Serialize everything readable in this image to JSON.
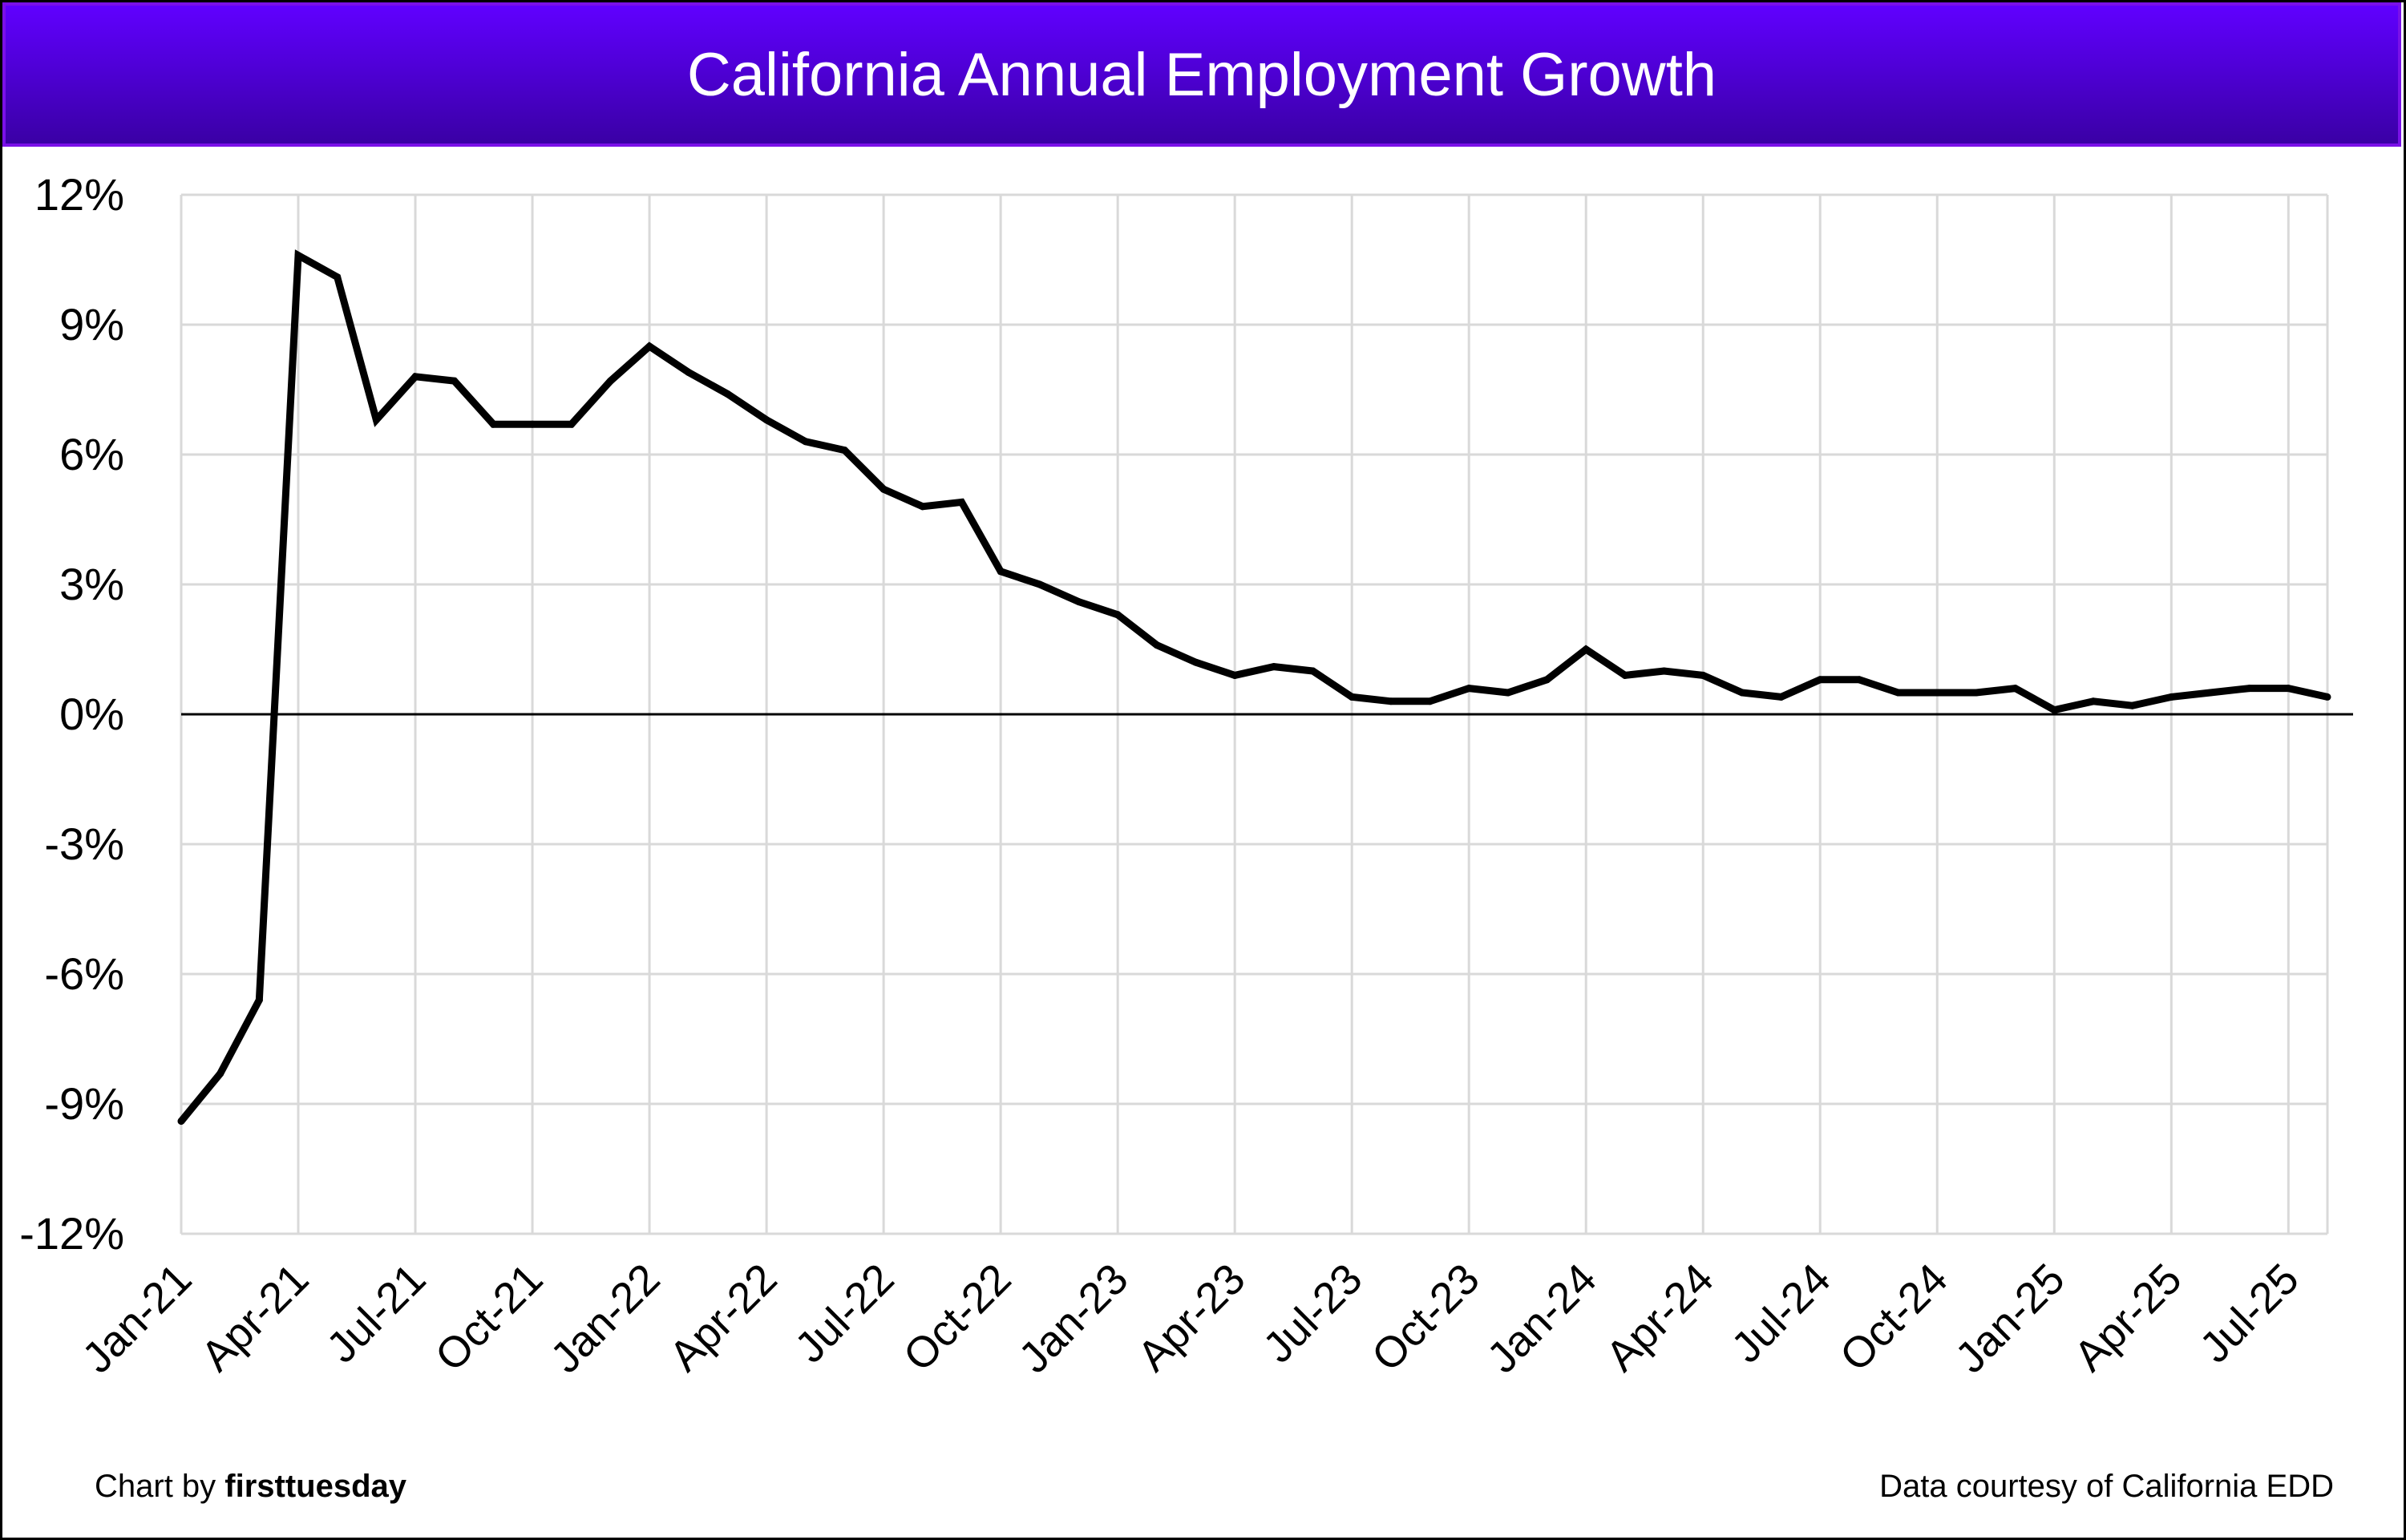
{
  "chart_data": {
    "type": "line",
    "title": "California Annual Employment Growth",
    "xlabel": "",
    "ylabel": "",
    "ylim": [
      -12,
      12
    ],
    "yticks": [
      "-12%",
      "-9%",
      "-6%",
      "-3%",
      "0%",
      "3%",
      "6%",
      "9%",
      "12%"
    ],
    "ytick_values": [
      -12,
      -9,
      -6,
      -3,
      0,
      3,
      6,
      9,
      12
    ],
    "xtick_labels": [
      "Jan-21",
      "Apr-21",
      "Jul-21",
      "Oct-21",
      "Jan-22",
      "Apr-22",
      "Jul-22",
      "Oct-22",
      "Jan-23",
      "Apr-23",
      "Jul-23",
      "Oct-23",
      "Jan-24",
      "Apr-24",
      "Jul-24",
      "Oct-24",
      "Jan-25",
      "Apr-25",
      "Jul-25"
    ],
    "grid": true,
    "legend": "none",
    "series": [
      {
        "name": "California annual employment growth (%)",
        "color": "#000000",
        "x": [
          "Jan-21",
          "Feb-21",
          "Mar-21",
          "Apr-21",
          "May-21",
          "Jun-21",
          "Jul-21",
          "Aug-21",
          "Sep-21",
          "Oct-21",
          "Nov-21",
          "Dec-21",
          "Jan-22",
          "Feb-22",
          "Mar-22",
          "Apr-22",
          "May-22",
          "Jun-22",
          "Jul-22",
          "Aug-22",
          "Sep-22",
          "Oct-22",
          "Nov-22",
          "Dec-22",
          "Jan-23",
          "Feb-23",
          "Mar-23",
          "Apr-23",
          "May-23",
          "Jun-23",
          "Jul-23",
          "Aug-23",
          "Sep-23",
          "Oct-23",
          "Nov-23",
          "Dec-23",
          "Jan-24",
          "Feb-24",
          "Mar-24",
          "Apr-24",
          "May-24",
          "Jun-24",
          "Jul-24",
          "Aug-24",
          "Sep-24",
          "Oct-24",
          "Nov-24",
          "Dec-24",
          "Jan-25",
          "Feb-25",
          "Mar-25",
          "Apr-25",
          "May-25",
          "Jun-25",
          "Jul-25",
          "Aug-25"
        ],
        "values": [
          -9.4,
          -8.3,
          -6.6,
          10.6,
          10.1,
          6.8,
          7.8,
          7.7,
          6.7,
          6.7,
          6.7,
          7.7,
          8.5,
          7.9,
          7.4,
          6.8,
          6.3,
          6.1,
          5.2,
          4.8,
          4.9,
          3.3,
          3.0,
          2.6,
          2.3,
          1.6,
          1.2,
          0.9,
          1.1,
          1.0,
          0.4,
          0.3,
          0.3,
          0.6,
          0.5,
          0.8,
          1.5,
          0.9,
          1.0,
          0.9,
          0.5,
          0.4,
          0.8,
          0.8,
          0.5,
          0.5,
          0.5,
          0.6,
          0.1,
          0.3,
          0.2,
          0.4,
          0.5,
          0.6,
          0.6,
          0.4
        ]
      }
    ]
  },
  "footer": {
    "credit_prefix": "Chart by ",
    "credit_brand": "firsttuesday",
    "source": "Data courtesy of California EDD"
  },
  "colors": {
    "title_bar_top": "#6000ff",
    "title_bar_bottom": "#3a00a5",
    "grid": "#d9d9d9",
    "line": "#000000"
  }
}
